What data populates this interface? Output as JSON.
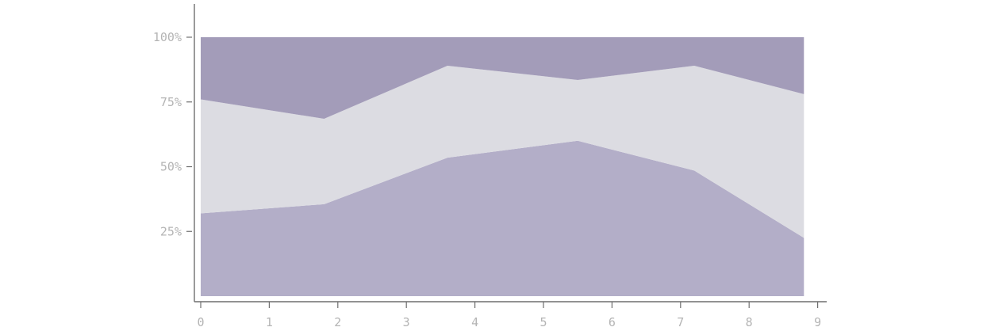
{
  "chart_data": {
    "type": "area",
    "stacked": true,
    "normalized": true,
    "x": [
      0,
      1.8,
      3.6,
      5.5,
      7.2,
      8.8
    ],
    "series": [
      {
        "values": [
          32,
          35.5,
          53.5,
          60,
          48.5,
          22.5
        ],
        "color": "#b3aec8"
      },
      {
        "values": [
          44,
          33,
          35.5,
          23.5,
          40.5,
          55.5
        ],
        "color": "#dcdce2"
      },
      {
        "values": [
          24,
          31.5,
          11,
          16.5,
          11,
          22
        ],
        "color": "#a39cb9"
      }
    ],
    "xlim": [
      0,
      9
    ],
    "ylim": [
      0,
      100
    ],
    "xticks": [
      "0",
      "1",
      "2",
      "3",
      "4",
      "5",
      "6",
      "7",
      "8",
      "9"
    ],
    "yticks": [
      "25%",
      "50%",
      "75%",
      "100%"
    ],
    "ytick_values": [
      25,
      50,
      75,
      100
    ],
    "grid": false,
    "legend": "none",
    "axis_color": "#6f6f6f",
    "tick_label_color": "#b4b4b4"
  }
}
